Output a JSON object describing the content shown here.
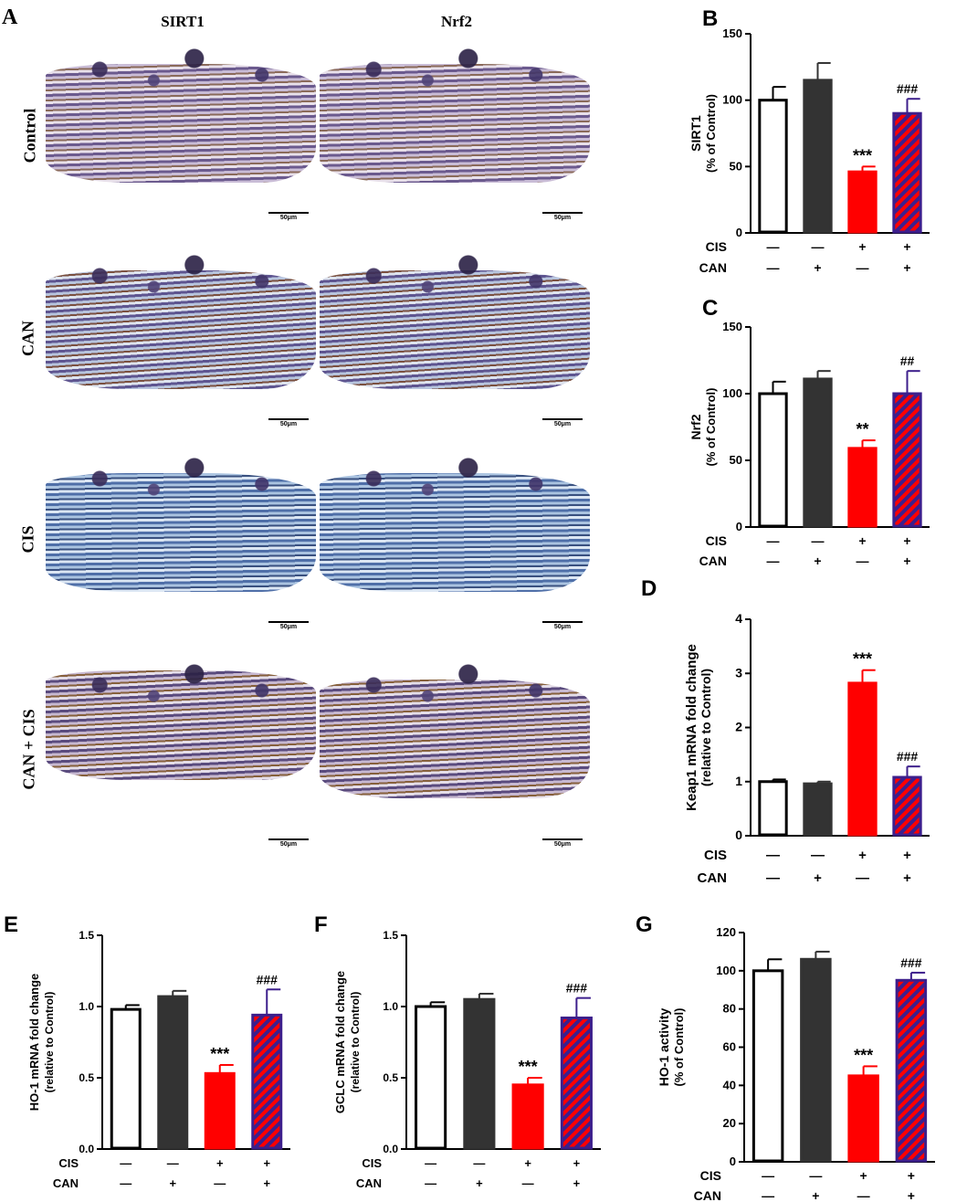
{
  "panel_A": {
    "label": "A",
    "columns": [
      "SIRT1",
      "Nrf2"
    ],
    "rows": [
      "Control",
      "CAN",
      "CIS",
      "CAN + CIS"
    ],
    "scale_bar": "50μm"
  },
  "chart_data": [
    {
      "panel": "B",
      "type": "bar",
      "categories": [
        "Control",
        "CAN",
        "CIS",
        "CAN + CIS"
      ],
      "values": [
        100,
        115,
        46,
        90
      ],
      "errors": [
        10,
        13,
        4,
        11
      ],
      "annotations": [
        "",
        "",
        "***",
        "###"
      ],
      "ylabel": "SIRT1",
      "ylabel2": "(% of Control)",
      "ylim": [
        0,
        150
      ],
      "yticks": [
        0,
        50,
        100,
        150
      ],
      "ytick_labels": [
        "0",
        "50",
        "100",
        "150"
      ],
      "treatment_rows": [
        {
          "name": "CIS",
          "marks": [
            "—",
            "—",
            "+",
            "+"
          ]
        },
        {
          "name": "CAN",
          "marks": [
            "—",
            "+",
            "—",
            "+"
          ]
        }
      ]
    },
    {
      "panel": "C",
      "type": "bar",
      "categories": [
        "Control",
        "CAN",
        "CIS",
        "CAN + CIS"
      ],
      "values": [
        100,
        111,
        59,
        100
      ],
      "errors": [
        9,
        6,
        6,
        17
      ],
      "annotations": [
        "",
        "",
        "**",
        "##"
      ],
      "ylabel": "Nrf2",
      "ylabel2": "(% of Control)",
      "ylim": [
        0,
        150
      ],
      "yticks": [
        0,
        50,
        100,
        150
      ],
      "ytick_labels": [
        "0",
        "50",
        "100",
        "150"
      ],
      "treatment_rows": [
        {
          "name": "CIS",
          "marks": [
            "—",
            "—",
            "+",
            "+"
          ]
        },
        {
          "name": "CAN",
          "marks": [
            "—",
            "+",
            "—",
            "+"
          ]
        }
      ]
    },
    {
      "panel": "D",
      "type": "bar",
      "categories": [
        "Control",
        "CAN",
        "CIS",
        "CAN + CIS"
      ],
      "values": [
        1.0,
        0.96,
        2.82,
        1.08
      ],
      "errors": [
        0.04,
        0.04,
        0.24,
        0.2
      ],
      "annotations": [
        "",
        "",
        "***",
        "###"
      ],
      "ylabel": "Keap1 mRNA fold change",
      "ylabel2": "(relative to Control)",
      "ylim": [
        0,
        4
      ],
      "yticks": [
        0,
        1,
        2,
        3,
        4
      ],
      "ytick_labels": [
        "0",
        "1",
        "2",
        "3",
        "4"
      ],
      "treatment_rows": [
        {
          "name": "CIS",
          "marks": [
            "—",
            "—",
            "+",
            "+"
          ]
        },
        {
          "name": "CAN",
          "marks": [
            "—",
            "+",
            "—",
            "+"
          ]
        }
      ]
    },
    {
      "panel": "E",
      "type": "bar",
      "categories": [
        "Control",
        "CAN",
        "CIS",
        "CAN + CIS"
      ],
      "values": [
        0.98,
        1.07,
        0.53,
        0.94
      ],
      "errors": [
        0.03,
        0.04,
        0.06,
        0.18
      ],
      "annotations": [
        "",
        "",
        "***",
        "###"
      ],
      "ylabel": "HO-1 mRNA fold change",
      "ylabel2": "(relative to Control)",
      "ylim": [
        0,
        1.5
      ],
      "yticks": [
        0,
        0.5,
        1.0,
        1.5
      ],
      "ytick_labels": [
        "0.0",
        "0.5",
        "1.0",
        "1.5"
      ],
      "treatment_rows": [
        {
          "name": "CIS",
          "marks": [
            "—",
            "—",
            "+",
            "+"
          ]
        },
        {
          "name": "CAN",
          "marks": [
            "—",
            "+",
            "—",
            "+"
          ]
        }
      ]
    },
    {
      "panel": "F",
      "type": "bar",
      "categories": [
        "Control",
        "CAN",
        "CIS",
        "CAN + CIS"
      ],
      "values": [
        1.0,
        1.05,
        0.45,
        0.92
      ],
      "errors": [
        0.03,
        0.04,
        0.05,
        0.14
      ],
      "annotations": [
        "",
        "",
        "***",
        "###"
      ],
      "ylabel": "GCLC mRNA fold change",
      "ylabel2": "(relative to Control)",
      "ylim": [
        0,
        1.5
      ],
      "yticks": [
        0,
        0.5,
        1.0,
        1.5
      ],
      "ytick_labels": [
        "0.0",
        "0.5",
        "1.0",
        "1.5"
      ],
      "treatment_rows": [
        {
          "name": "CIS",
          "marks": [
            "—",
            "—",
            "+",
            "+"
          ]
        },
        {
          "name": "CAN",
          "marks": [
            "—",
            "+",
            "—",
            "+"
          ]
        }
      ]
    },
    {
      "panel": "G",
      "type": "bar",
      "categories": [
        "Control",
        "CAN",
        "CIS",
        "CAN + CIS"
      ],
      "values": [
        100,
        106,
        45,
        95
      ],
      "errors": [
        6,
        4,
        5,
        4
      ],
      "annotations": [
        "",
        "",
        "***",
        "###"
      ],
      "ylabel": "HO-1 activity",
      "ylabel2": "(% of Control)",
      "ylim": [
        0,
        120
      ],
      "yticks": [
        0,
        20,
        40,
        60,
        80,
        100,
        120
      ],
      "ytick_labels": [
        "0",
        "20",
        "40",
        "60",
        "80",
        "100",
        "120"
      ],
      "treatment_rows": [
        {
          "name": "CIS",
          "marks": [
            "—",
            "—",
            "+",
            "+"
          ]
        },
        {
          "name": "CAN",
          "marks": [
            "—",
            "+",
            "—",
            "+"
          ]
        }
      ]
    }
  ],
  "bar_styles": [
    {
      "fill": "#ffffff",
      "stroke": "#000000",
      "pattern": "none"
    },
    {
      "fill": "#333333",
      "stroke": "#333333",
      "pattern": "none"
    },
    {
      "fill": "#ff0000",
      "stroke": "#ff0000",
      "pattern": "none"
    },
    {
      "fill": "#ff0000",
      "stroke": "#3d1f8c",
      "pattern": "diagonal",
      "stripe": "#3d1f8c"
    }
  ],
  "colors": {
    "purple_stain": "#5a4a8a",
    "blue_stain": "#6f93c2",
    "brown_stain": "#8a5a2a",
    "error_bar_blue": "#3d1f8c"
  }
}
